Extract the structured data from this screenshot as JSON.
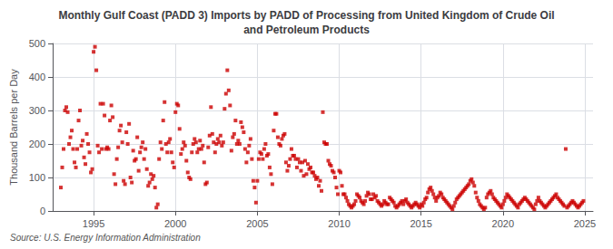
{
  "chart_data": {
    "type": "scatter",
    "title": "Monthly Gulf Coast (PADD 3) Imports by PADD of Processing from United Kingdom of Crude Oil\nand Petroleum Products",
    "ylabel": "Thousand Barrels per Day",
    "source": "Source: U.S. Energy Information Administration",
    "color": "#cc0000",
    "marker": "square",
    "grid": true,
    "xlim": [
      1992.5,
      2025.5
    ],
    "ylim": [
      0,
      500
    ],
    "xticks": [
      1995,
      2000,
      2005,
      2010,
      2015,
      2020,
      2025
    ],
    "yticks": [
      0,
      100,
      200,
      300,
      400,
      500
    ],
    "x": [
      1993,
      1993.0833333333333,
      1993.1666666666667,
      1993.25,
      1993.3333333333333,
      1993.4166666666667,
      1993.5,
      1993.5833333333333,
      1993.6666666666667,
      1993.75,
      1993.8333333333333,
      1993.9166666666667,
      1994,
      1994.0833333333333,
      1994.1666666666667,
      1994.25,
      1994.3333333333333,
      1994.4166666666667,
      1994.5,
      1994.5833333333333,
      1994.6666666666667,
      1994.75,
      1994.8333333333333,
      1994.9166666666667,
      1995,
      1995.0833333333333,
      1995.1666666666667,
      1995.25,
      1995.3333333333333,
      1995.4166666666667,
      1995.5,
      1995.5833333333333,
      1995.6666666666667,
      1995.75,
      1995.8333333333333,
      1995.9166666666667,
      1996,
      1996.0833333333333,
      1996.1666666666667,
      1996.25,
      1996.3333333333333,
      1996.4166666666667,
      1996.5,
      1996.5833333333333,
      1996.6666666666667,
      1996.75,
      1996.8333333333333,
      1996.9166666666667,
      1997,
      1997.0833333333333,
      1997.1666666666667,
      1997.25,
      1997.3333333333333,
      1997.4166666666667,
      1997.5,
      1997.5833333333333,
      1997.6666666666667,
      1997.75,
      1997.8333333333333,
      1997.9166666666667,
      1998,
      1998.0833333333333,
      1998.1666666666667,
      1998.25,
      1998.3333333333333,
      1998.4166666666667,
      1998.5,
      1998.5833333333333,
      1998.6666666666667,
      1998.75,
      1998.8333333333333,
      1998.9166666666667,
      1999,
      1999.0833333333333,
      1999.1666666666667,
      1999.25,
      1999.3333333333333,
      1999.4166666666667,
      1999.5,
      1999.5833333333333,
      1999.6666666666667,
      1999.75,
      1999.8333333333333,
      1999.9166666666667,
      2000,
      2000.0833333333333,
      2000.1666666666667,
      2000.25,
      2000.3333333333333,
      2000.4166666666667,
      2000.5,
      2000.5833333333333,
      2000.6666666666667,
      2000.75,
      2000.8333333333333,
      2000.9166666666667,
      2001,
      2001.0833333333333,
      2001.1666666666667,
      2001.25,
      2001.3333333333333,
      2001.4166666666667,
      2001.5,
      2001.5833333333333,
      2001.6666666666667,
      2001.75,
      2001.8333333333333,
      2001.9166666666667,
      2002,
      2002.0833333333333,
      2002.1666666666667,
      2002.25,
      2002.3333333333333,
      2002.4166666666667,
      2002.5,
      2002.5833333333333,
      2002.6666666666667,
      2002.75,
      2002.8333333333333,
      2002.9166666666667,
      2003,
      2003.0833333333333,
      2003.1666666666667,
      2003.25,
      2003.3333333333333,
      2003.4166666666667,
      2003.5,
      2003.5833333333333,
      2003.6666666666667,
      2003.75,
      2003.8333333333333,
      2003.9166666666667,
      2004,
      2004.0833333333333,
      2004.1666666666667,
      2004.25,
      2004.3333333333333,
      2004.4166666666667,
      2004.5,
      2004.5833333333333,
      2004.6666666666667,
      2004.75,
      2004.8333333333333,
      2004.9166666666667,
      2005,
      2005.0833333333333,
      2005.1666666666667,
      2005.25,
      2005.3333333333333,
      2005.4166666666667,
      2005.5,
      2005.5833333333333,
      2005.6666666666667,
      2005.75,
      2005.8333333333333,
      2005.9166666666667,
      2006,
      2006.0833333333333,
      2006.1666666666667,
      2006.25,
      2006.3333333333333,
      2006.4166666666667,
      2006.5,
      2006.5833333333333,
      2006.6666666666667,
      2006.75,
      2006.8333333333333,
      2006.9166666666667,
      2007,
      2007.0833333333333,
      2007.1666666666667,
      2007.25,
      2007.3333333333333,
      2007.4166666666667,
      2007.5,
      2007.5833333333333,
      2007.6666666666667,
      2007.75,
      2007.8333333333333,
      2007.9166666666667,
      2008,
      2008.0833333333333,
      2008.1666666666667,
      2008.25,
      2008.3333333333333,
      2008.4166666666667,
      2008.5,
      2008.5833333333333,
      2008.6666666666667,
      2008.75,
      2008.8333333333333,
      2008.9166666666667,
      2009,
      2009.0833333333333,
      2009.1666666666667,
      2009.25,
      2009.3333333333333,
      2009.4166666666667,
      2009.5,
      2009.5833333333333,
      2009.6666666666667,
      2009.75,
      2009.8333333333333,
      2009.9166666666667,
      2010,
      2010.0833333333333,
      2010.1666666666667,
      2010.25,
      2010.3333333333333,
      2010.4166666666667,
      2010.5,
      2010.5833333333333,
      2010.6666666666667,
      2010.75,
      2010.8333333333333,
      2010.9166666666667,
      2011,
      2011.0833333333333,
      2011.1666666666667,
      2011.25,
      2011.3333333333333,
      2011.4166666666667,
      2011.5,
      2011.5833333333333,
      2011.6666666666667,
      2011.75,
      2011.8333333333333,
      2011.9166666666667,
      2012,
      2012.0833333333333,
      2012.1666666666667,
      2012.25,
      2012.3333333333333,
      2012.4166666666667,
      2012.5,
      2012.5833333333333,
      2012.6666666666667,
      2012.75,
      2012.8333333333333,
      2012.9166666666667,
      2013,
      2013.0833333333333,
      2013.1666666666667,
      2013.25,
      2013.3333333333333,
      2013.4166666666667,
      2013.5,
      2013.5833333333333,
      2013.6666666666667,
      2013.75,
      2013.8333333333333,
      2013.9166666666667,
      2014,
      2014.0833333333333,
      2014.1666666666667,
      2014.25,
      2014.3333333333333,
      2014.4166666666667,
      2014.5,
      2014.5833333333333,
      2014.6666666666667,
      2014.75,
      2014.8333333333333,
      2014.9166666666667,
      2015,
      2015.0833333333333,
      2015.1666666666667,
      2015.25,
      2015.3333333333333,
      2015.4166666666667,
      2015.5,
      2015.5833333333333,
      2015.6666666666667,
      2015.75,
      2015.8333333333333,
      2015.9166666666667,
      2016,
      2016.0833333333333,
      2016.1666666666667,
      2016.25,
      2016.3333333333333,
      2016.4166666666667,
      2016.5,
      2016.5833333333333,
      2016.6666666666667,
      2016.75,
      2016.8333333333333,
      2016.9166666666667,
      2017,
      2017.0833333333333,
      2017.1666666666667,
      2017.25,
      2017.3333333333333,
      2017.4166666666667,
      2017.5,
      2017.5833333333333,
      2017.6666666666667,
      2017.75,
      2017.8333333333333,
      2017.9166666666667,
      2018,
      2018.0833333333333,
      2018.1666666666667,
      2018.25,
      2018.3333333333333,
      2018.4166666666667,
      2018.5,
      2018.5833333333333,
      2018.6666666666667,
      2018.75,
      2018.8333333333333,
      2018.9166666666667,
      2019,
      2019.0833333333333,
      2019.1666666666667,
      2019.25,
      2019.3333333333333,
      2019.4166666666667,
      2019.5,
      2019.5833333333333,
      2019.6666666666667,
      2019.75,
      2019.8333333333333,
      2019.9166666666667,
      2020,
      2020.0833333333333,
      2020.1666666666667,
      2020.25,
      2020.3333333333333,
      2020.4166666666667,
      2020.5,
      2020.5833333333333,
      2020.6666666666667,
      2020.75,
      2020.8333333333333,
      2020.9166666666667,
      2021,
      2021.0833333333333,
      2021.1666666666667,
      2021.25,
      2021.3333333333333,
      2021.4166666666667,
      2021.5,
      2021.5833333333333,
      2021.6666666666667,
      2021.75,
      2021.8333333333333,
      2021.9166666666667,
      2022,
      2022.0833333333333,
      2022.1666666666667,
      2022.25,
      2022.3333333333333,
      2022.4166666666667,
      2022.5,
      2022.5833333333333,
      2022.6666666666667,
      2022.75,
      2022.8333333333333,
      2022.9166666666667,
      2023,
      2023.0833333333333,
      2023.1666666666667,
      2023.25,
      2023.3333333333333,
      2023.4166666666667,
      2023.5,
      2023.5833333333333,
      2023.6666666666667,
      2023.75,
      2023.8333333333333,
      2023.9166666666667,
      2024,
      2024.0833333333333,
      2024.1666666666667,
      2024.25,
      2024.3333333333333,
      2024.4166666666667,
      2024.5,
      2024.5833333333333,
      2024.6666666666667,
      2024.75,
      2024.8333333333333,
      2024.9166666666667
    ],
    "values": [
      70,
      130,
      185,
      300,
      310,
      295,
      200,
      220,
      240,
      185,
      145,
      130,
      185,
      270,
      300,
      195,
      210,
      160,
      140,
      230,
      200,
      175,
      115,
      125,
      475,
      490,
      420,
      195,
      175,
      320,
      185,
      320,
      285,
      185,
      190,
      185,
      270,
      315,
      280,
      110,
      80,
      155,
      190,
      240,
      255,
      205,
      90,
      80,
      235,
      200,
      260,
      100,
      85,
      180,
      150,
      155,
      220,
      120,
      175,
      190,
      205,
      155,
      185,
      125,
      75,
      85,
      110,
      95,
      105,
      70,
      10,
      20,
      155,
      205,
      185,
      270,
      325,
      200,
      175,
      205,
      215,
      175,
      145,
      130,
      295,
      320,
      315,
      245,
      170,
      185,
      205,
      195,
      150,
      115,
      100,
      95,
      175,
      200,
      215,
      205,
      175,
      185,
      210,
      185,
      195,
      145,
      80,
      85,
      190,
      225,
      310,
      230,
      205,
      175,
      200,
      215,
      205,
      225,
      195,
      205,
      305,
      350,
      420,
      360,
      315,
      180,
      220,
      230,
      270,
      200,
      210,
      200,
      265,
      250,
      235,
      185,
      145,
      175,
      195,
      215,
      155,
      90,
      70,
      25,
      90,
      155,
      175,
      170,
      155,
      185,
      200,
      165,
      170,
      130,
      110,
      80,
      240,
      290,
      290,
      220,
      200,
      195,
      215,
      225,
      230,
      145,
      120,
      135,
      155,
      185,
      165,
      165,
      155,
      130,
      155,
      145,
      120,
      145,
      105,
      150,
      110,
      140,
      125,
      130,
      115,
      115,
      105,
      95,
      100,
      75,
      90,
      60,
      295,
      205,
      200,
      200,
      150,
      140,
      135,
      120,
      115,
      100,
      70,
      50,
      120,
      115,
      75,
      50,
      50,
      40,
      30,
      20,
      15,
      10,
      15,
      20,
      30,
      50,
      45,
      40,
      30,
      25,
      20,
      30,
      45,
      55,
      50,
      35,
      35,
      50,
      40,
      45,
      30,
      25,
      20,
      15,
      20,
      30,
      25,
      20,
      20,
      40,
      35,
      30,
      25,
      15,
      10,
      15,
      20,
      25,
      30,
      20,
      30,
      35,
      25,
      20,
      15,
      10,
      15,
      20,
      25,
      20,
      15,
      10,
      20,
      15,
      25,
      35,
      40,
      55,
      65,
      70,
      60,
      50,
      40,
      30,
      40,
      45,
      55,
      50,
      40,
      35,
      30,
      25,
      20,
      15,
      10,
      5,
      15,
      25,
      35,
      40,
      45,
      50,
      55,
      60,
      65,
      70,
      75,
      80,
      90,
      95,
      85,
      75,
      55,
      40,
      30,
      20,
      15,
      10,
      5,
      10,
      40,
      50,
      55,
      60,
      50,
      40,
      35,
      30,
      25,
      20,
      15,
      10,
      20,
      30,
      40,
      50,
      45,
      40,
      35,
      30,
      25,
      20,
      15,
      10,
      20,
      25,
      30,
      35,
      40,
      35,
      30,
      25,
      20,
      15,
      10,
      5,
      20,
      30,
      40,
      30,
      25,
      20,
      15,
      10,
      15,
      20,
      25,
      30,
      35,
      40,
      45,
      50,
      40,
      35,
      30,
      25,
      20,
      15,
      185,
      10,
      15,
      20,
      25,
      30,
      25,
      20,
      15,
      10,
      15,
      20,
      25,
      30
    ]
  }
}
